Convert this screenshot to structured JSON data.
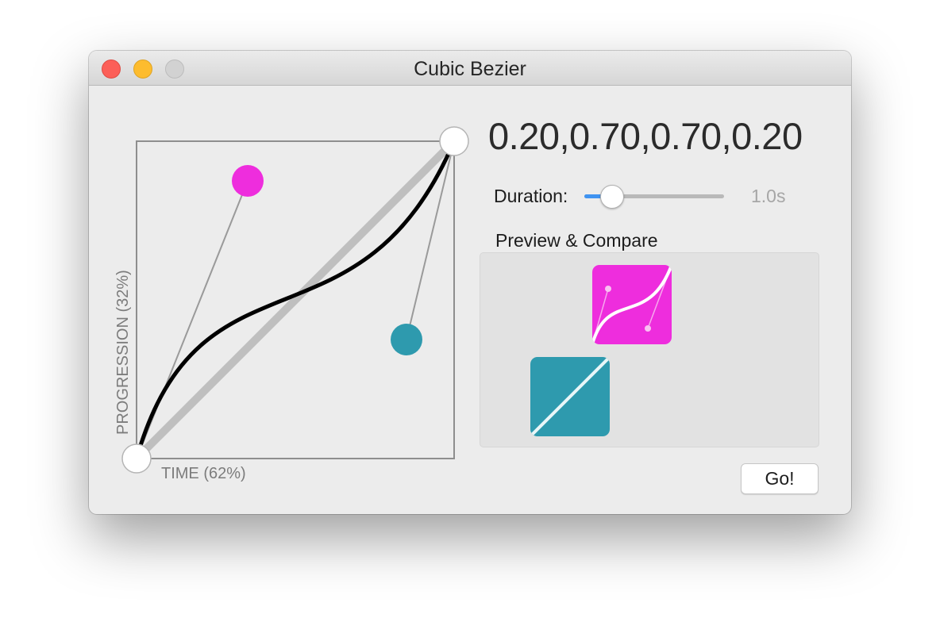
{
  "window": {
    "title": "Cubic Bezier"
  },
  "curve": {
    "bezier": [
      0.2,
      0.7,
      0.7,
      0.2
    ],
    "time_label": "TIME (62%)",
    "progression_label": "PROGRESSION (32%)",
    "cp1_color": "#ee2ddd",
    "cp2_color": "#2e9aae"
  },
  "params_display": "0.20,0.70,0.70,0.20",
  "duration": {
    "label": "Duration:",
    "value_text": "1.0s",
    "slider_fraction": 0.2
  },
  "preview": {
    "label": "Preview & Compare",
    "custom_tile_color": "#ee2ddd",
    "linear_tile_color": "#2e9aae"
  },
  "go_button": {
    "label": "Go!"
  }
}
